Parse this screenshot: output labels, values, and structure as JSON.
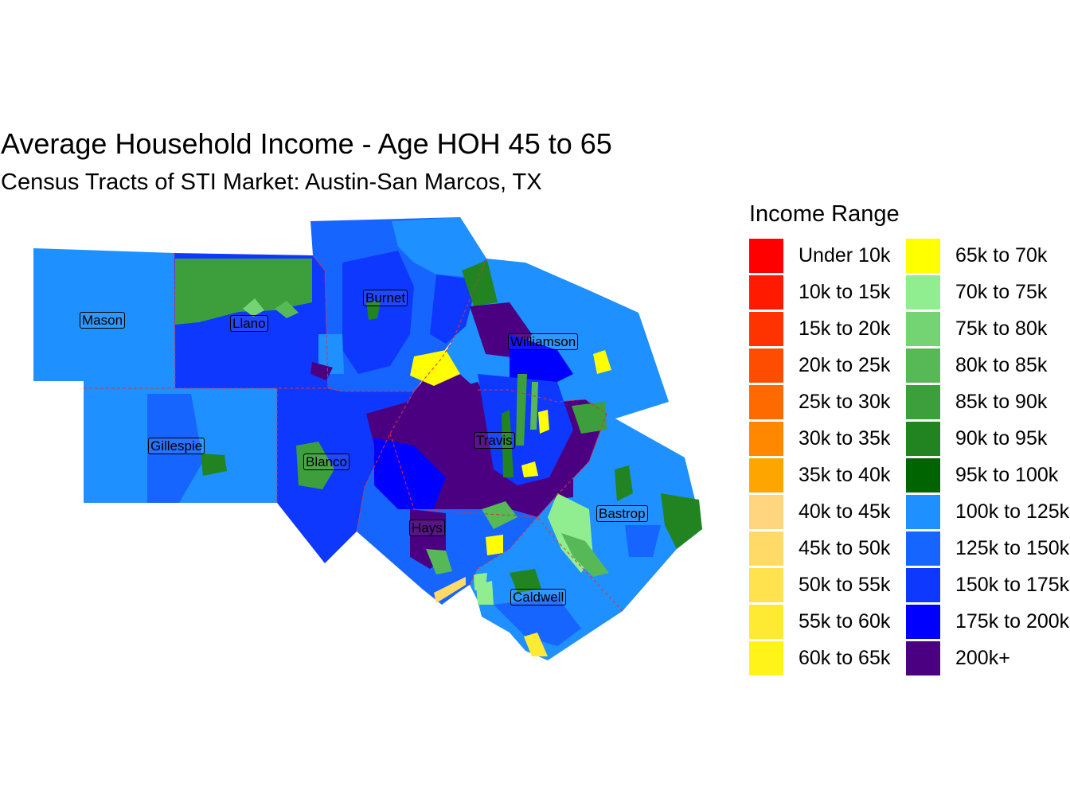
{
  "title": "Average Household Income - Age HOH 45 to 65",
  "subtitle": "Census Tracts of STI Market: Austin-San Marcos, TX",
  "legend": {
    "title": "Income Range",
    "columns": [
      [
        {
          "label": "Under 10k",
          "color": "#FF0000"
        },
        {
          "label": "10k to 15k",
          "color": "#FF1A00"
        },
        {
          "label": "15k to 20k",
          "color": "#FF3300"
        },
        {
          "label": "20k to 25k",
          "color": "#FF4D00"
        },
        {
          "label": "25k to 30k",
          "color": "#FF6A00"
        },
        {
          "label": "30k to 35k",
          "color": "#FF8800"
        },
        {
          "label": "35k to 40k",
          "color": "#FFA500"
        },
        {
          "label": "40k to 45k",
          "color": "#FFD580"
        },
        {
          "label": "45k to 50k",
          "color": "#FFDA66"
        },
        {
          "label": "50k to 55k",
          "color": "#FFE24D"
        },
        {
          "label": "55k to 60k",
          "color": "#FFEA33"
        },
        {
          "label": "60k to 65k",
          "color": "#FFF31A"
        }
      ],
      [
        {
          "label": "65k to 70k",
          "color": "#FFFF00"
        },
        {
          "label": "70k to 75k",
          "color": "#90EE90"
        },
        {
          "label": "75k to 80k",
          "color": "#74D474"
        },
        {
          "label": "80k to 85k",
          "color": "#56B956"
        },
        {
          "label": "85k to 90k",
          "color": "#3C9F3C"
        },
        {
          "label": "90k to 95k",
          "color": "#218421"
        },
        {
          "label": "95k to 100k",
          "color": "#006400"
        },
        {
          "label": "100k to 125k",
          "color": "#1E90FF"
        },
        {
          "label": "125k to 150k",
          "color": "#1765FF"
        },
        {
          "label": "150k to 175k",
          "color": "#0F38FF"
        },
        {
          "label": "175k to 200k",
          "color": "#0000FF"
        },
        {
          "label": "200k+",
          "color": "#4B0082"
        }
      ]
    ]
  },
  "counties": [
    {
      "name": "Mason",
      "fill": "#1E90FF"
    },
    {
      "name": "Llano",
      "fill": "#0F38FF"
    },
    {
      "name": "Burnet",
      "fill": "#1765FF"
    },
    {
      "name": "Williamson",
      "fill": "#1E90FF"
    },
    {
      "name": "Gillespie",
      "fill": "#1E90FF"
    },
    {
      "name": "Blanco",
      "fill": "#0F38FF"
    },
    {
      "name": "Travis",
      "fill": "#4B0082"
    },
    {
      "name": "Hays",
      "fill": "#1765FF"
    },
    {
      "name": "Bastrop",
      "fill": "#1E90FF"
    },
    {
      "name": "Caldwell",
      "fill": "#1E90FF"
    }
  ]
}
